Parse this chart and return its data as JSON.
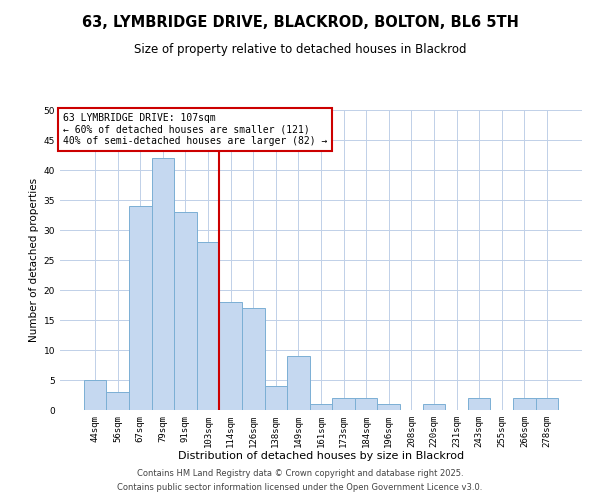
{
  "title": "63, LYMBRIDGE DRIVE, BLACKROD, BOLTON, BL6 5TH",
  "subtitle": "Size of property relative to detached houses in Blackrod",
  "xlabel": "Distribution of detached houses by size in Blackrod",
  "ylabel": "Number of detached properties",
  "categories": [
    "44sqm",
    "56sqm",
    "67sqm",
    "79sqm",
    "91sqm",
    "103sqm",
    "114sqm",
    "126sqm",
    "138sqm",
    "149sqm",
    "161sqm",
    "173sqm",
    "184sqm",
    "196sqm",
    "208sqm",
    "220sqm",
    "231sqm",
    "243sqm",
    "255sqm",
    "266sqm",
    "278sqm"
  ],
  "values": [
    5,
    3,
    34,
    42,
    33,
    28,
    18,
    17,
    4,
    9,
    1,
    2,
    2,
    1,
    0,
    1,
    0,
    2,
    0,
    2,
    2
  ],
  "bar_color": "#c5d8f0",
  "bar_edgecolor": "#7bafd4",
  "vline_x": 5.5,
  "vline_color": "#cc0000",
  "annotation_text": "63 LYMBRIDGE DRIVE: 107sqm\n← 60% of detached houses are smaller (121)\n40% of semi-detached houses are larger (82) →",
  "annotation_box_edgecolor": "#cc0000",
  "annotation_box_facecolor": "#ffffff",
  "ylim": [
    0,
    50
  ],
  "yticks": [
    0,
    5,
    10,
    15,
    20,
    25,
    30,
    35,
    40,
    45,
    50
  ],
  "background_color": "#ffffff",
  "grid_color": "#c0d0e8",
  "footer_line1": "Contains HM Land Registry data © Crown copyright and database right 2025.",
  "footer_line2": "Contains public sector information licensed under the Open Government Licence v3.0.",
  "title_fontsize": 10.5,
  "subtitle_fontsize": 8.5,
  "xlabel_fontsize": 8,
  "ylabel_fontsize": 7.5,
  "tick_fontsize": 6.5,
  "annotation_fontsize": 7,
  "footer_fontsize": 6
}
